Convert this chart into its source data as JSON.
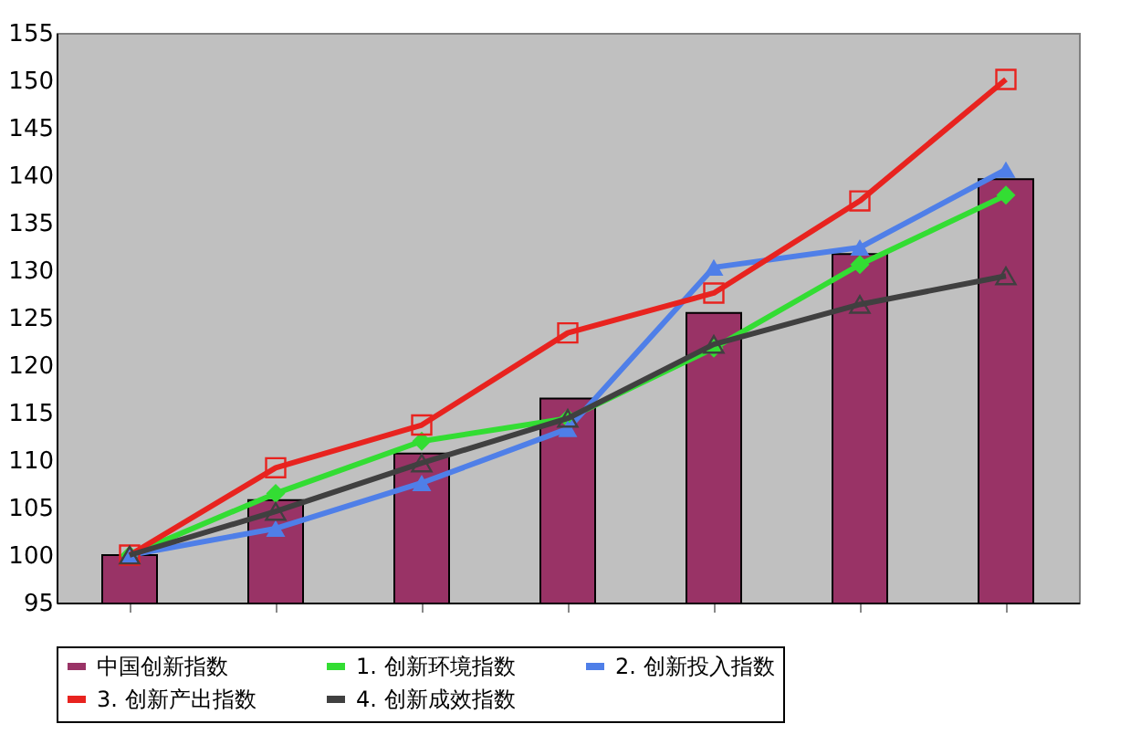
{
  "chart_data": {
    "type": "bar",
    "categories": [
      null,
      null,
      null,
      null,
      null,
      null,
      null
    ],
    "ylim": [
      95,
      155
    ],
    "yticks": [
      95,
      100,
      105,
      110,
      115,
      120,
      125,
      130,
      135,
      140,
      145,
      150,
      155
    ],
    "tick_labels": "y",
    "grid": false,
    "legend": "bottom",
    "series": [
      {
        "name": "中国创新指数",
        "color": "#993366",
        "values": [
          100,
          105.8,
          110.7,
          116.5,
          125.5,
          131.7,
          139.6
        ]
      },
      {
        "name": "1. 创新环境指数",
        "type": "line",
        "marker": "diamond",
        "color": "#33dd33",
        "values": [
          100,
          106.5,
          112,
          114.4,
          121.8,
          130.6,
          137.9
        ]
      },
      {
        "name": "2. 创新投入指数",
        "type": "line",
        "marker": "triangle",
        "color": "#4f7fe8",
        "values": [
          100,
          102.8,
          107.6,
          113.3,
          130.3,
          132.4,
          140.6
        ]
      },
      {
        "name": "3. 创新产出指数",
        "type": "line",
        "marker": "square",
        "color": "#e8231f",
        "values": [
          100,
          109.2,
          113.7,
          123.4,
          127.6,
          137.3,
          150.1
        ]
      },
      {
        "name": "4. 创新成效指数",
        "type": "line",
        "marker": "triangle",
        "color": "#404040",
        "values": [
          100,
          104.6,
          109.7,
          114.4,
          122.2,
          126.4,
          129.4
        ]
      }
    ]
  }
}
